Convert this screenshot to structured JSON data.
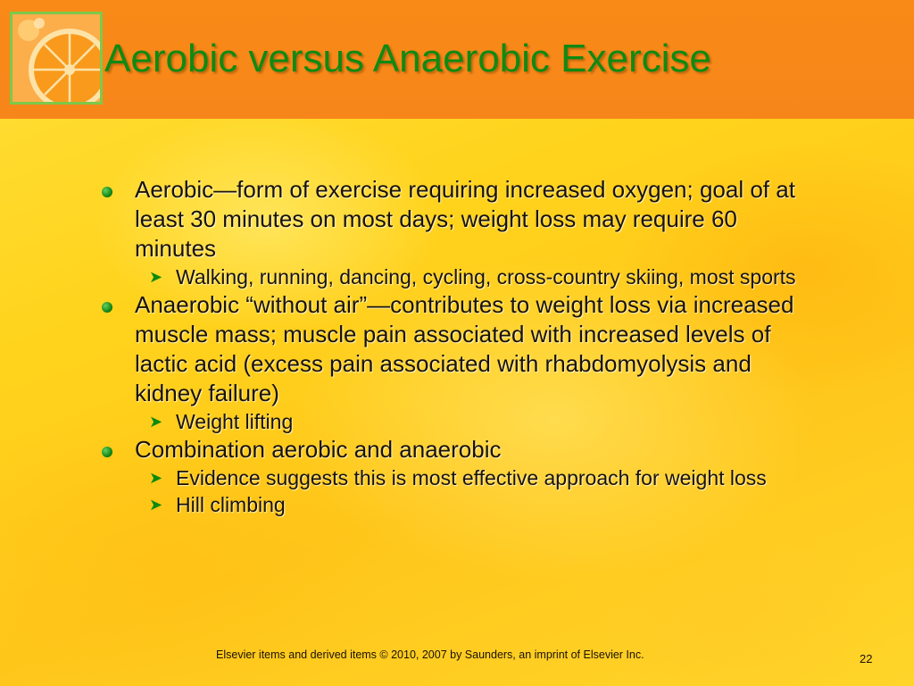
{
  "slide": {
    "title": "Aerobic versus Anaerobic Exercise",
    "bullets": [
      {
        "text": "Aerobic—form of exercise requiring increased oxygen; goal of at least 30 minutes on most days; weight loss may require 60 minutes",
        "subs": [
          "Walking, running, dancing, cycling, cross-country skiing, most sports"
        ]
      },
      {
        "text": "Anaerobic “without air”—contributes to weight loss via increased muscle mass; muscle pain associated with increased levels of lactic acid (excess pain associated with rhabdomyolysis and kidney failure)",
        "subs": [
          "Weight lifting"
        ]
      },
      {
        "text": "Combination aerobic and anaerobic",
        "subs": [
          "Evidence suggests this is most effective approach for weight loss",
          "Hill climbing"
        ]
      }
    ],
    "footer": "Elsevier items and derived items © 2010, 2007 by Saunders, an imprint of Elsevier Inc.",
    "page_number": "22"
  },
  "icons": {
    "bullet": "green-dot-icon",
    "sub_bullet": "arrow-right-icon",
    "logo": "orange-slice-icon"
  },
  "colors": {
    "header": "#f7861a",
    "title": "#0f8a12",
    "background": "#ffd31c",
    "logo_border": "#7ec84a"
  }
}
